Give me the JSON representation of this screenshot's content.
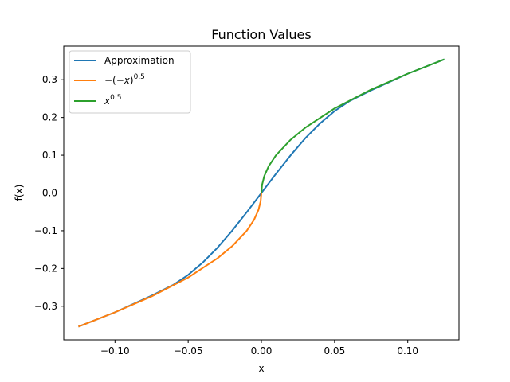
{
  "chart_data": {
    "type": "line",
    "title": "Function Values",
    "xlabel": "x",
    "ylabel": "f(x)",
    "xlim": [
      -0.135,
      0.135
    ],
    "ylim": [
      -0.389,
      0.389
    ],
    "xticks": [
      {
        "value": -0.1,
        "label": "−0.10"
      },
      {
        "value": -0.05,
        "label": "−0.05"
      },
      {
        "value": 0.0,
        "label": "0.00"
      },
      {
        "value": 0.05,
        "label": "0.05"
      },
      {
        "value": 0.1,
        "label": "0.10"
      }
    ],
    "yticks": [
      {
        "value": -0.3,
        "label": "−0.3"
      },
      {
        "value": -0.2,
        "label": "−0.2"
      },
      {
        "value": -0.1,
        "label": "−0.1"
      },
      {
        "value": 0.0,
        "label": "0.0"
      },
      {
        "value": 0.1,
        "label": "0.1"
      },
      {
        "value": 0.2,
        "label": "0.2"
      },
      {
        "value": 0.3,
        "label": "0.3"
      }
    ],
    "grid": false,
    "legend_position": "upper-left",
    "series": [
      {
        "name": "Approximation",
        "color": "#1f77b4",
        "x": [
          -0.125,
          -0.1,
          -0.075,
          -0.06,
          -0.05,
          -0.04,
          -0.03,
          -0.02,
          -0.01,
          0.0,
          0.01,
          0.02,
          0.03,
          0.04,
          0.05,
          0.06,
          0.075,
          0.1,
          0.125
        ],
        "y": [
          -0.354,
          -0.316,
          -0.272,
          -0.243,
          -0.217,
          -0.184,
          -0.145,
          -0.1,
          -0.051,
          0.0,
          0.051,
          0.1,
          0.145,
          0.184,
          0.217,
          0.243,
          0.272,
          0.316,
          0.354
        ]
      },
      {
        "name": "−(−x)^0.5",
        "color": "#ff7f0e",
        "x": [
          -0.125,
          -0.1,
          -0.075,
          -0.05,
          -0.03,
          -0.02,
          -0.01,
          -0.005,
          -0.002,
          -0.0005,
          0.0
        ],
        "y": [
          -0.354,
          -0.316,
          -0.274,
          -0.224,
          -0.173,
          -0.141,
          -0.1,
          -0.071,
          -0.045,
          -0.022,
          0.0
        ]
      },
      {
        "name": "x^0.5",
        "color": "#2ca02c",
        "x": [
          0.0,
          0.0005,
          0.002,
          0.005,
          0.01,
          0.02,
          0.03,
          0.05,
          0.075,
          0.1,
          0.125
        ],
        "y": [
          0.0,
          0.022,
          0.045,
          0.071,
          0.1,
          0.141,
          0.173,
          0.224,
          0.274,
          0.316,
          0.354
        ]
      }
    ]
  }
}
